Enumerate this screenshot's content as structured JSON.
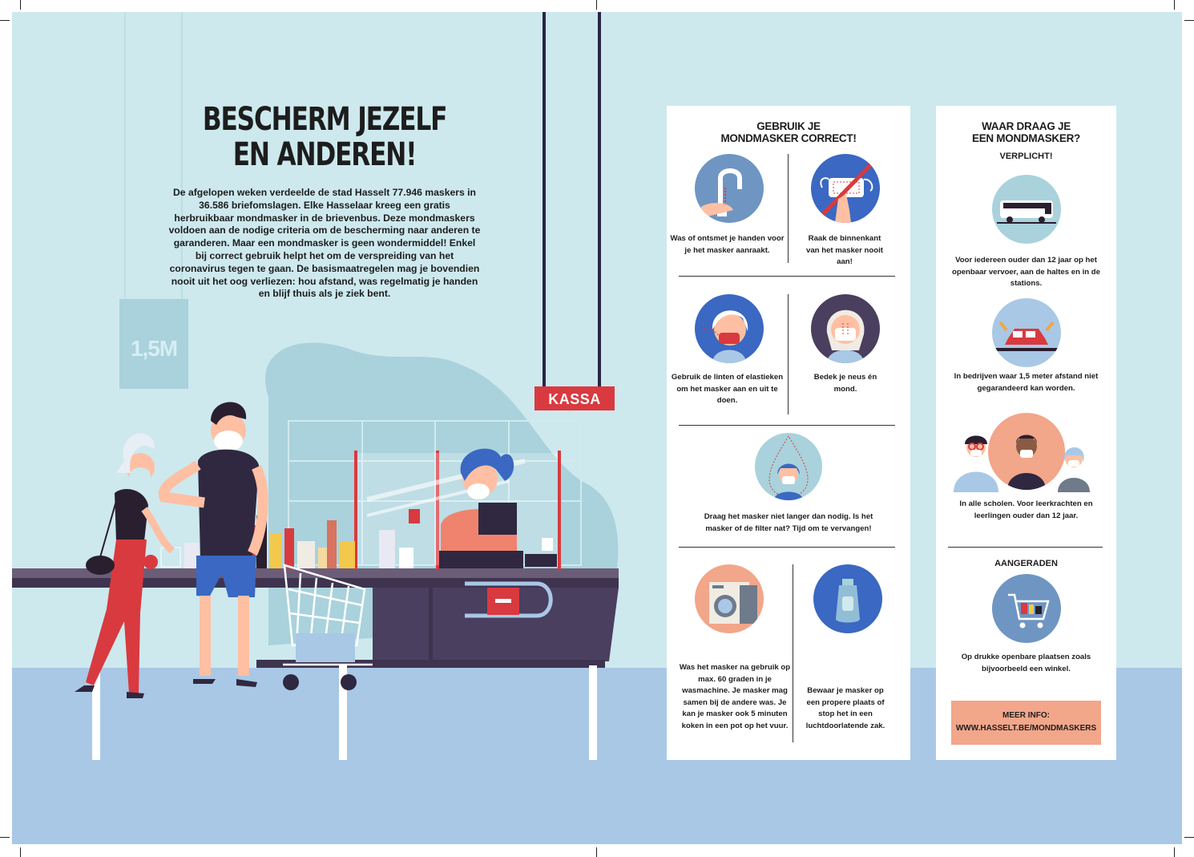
{
  "left": {
    "title_line1": "BESCHERM JEZELF",
    "title_line2": "EN ANDEREN!",
    "intro": "De afgelopen weken verdeelde de stad Hasselt 77.946 maskers in 36.586 briefomslagen. Elke Hasselaar kreeg een gratis herbruikbaar mondmasker in de brievenbus. Deze mondmaskers voldoen aan de nodige criteria om de bescherming naar anderen te garanderen. Maar een mondmasker is geen wondermiddel! Enkel bij correct gebruik helpt het om de verspreiding van het coronavirus tegen te gaan. De basismaatregelen mag je bovendien nooit uit het oog verliezen: hou afstand, was regelmatig je handen en blijf thuis als je ziek bent.",
    "distance_sign": "1,5M",
    "kassa_sign": "KASSA"
  },
  "correct_use": {
    "title_line1": "GEBRUIK JE",
    "title_line2": "MONDMASKER CORRECT!",
    "tips": [
      {
        "icon": "faucet-icon",
        "text": "Was of ontsmet je handen voor je het masker aanraakt."
      },
      {
        "icon": "no-touch-mask-icon",
        "text": "Raak de binnenkant van het masker nooit aan!"
      },
      {
        "icon": "mask-straps-icon",
        "text": "Gebruik de linten of elastieken om het masker aan en uit te doen."
      },
      {
        "icon": "cover-nose-mouth-icon",
        "text": "Bedek je neus én mond."
      },
      {
        "icon": "droplet-mask-icon",
        "text": "Draag het masker niet langer dan nodig. Is het masker of de filter nat? Tijd om te vervangen!"
      },
      {
        "icon": "washing-machine-icon",
        "text": "Was het masker na gebruik op max. 60 graden in je wasmachine. Je masker mag samen bij de andere was. Je kan je masker ook 5 minuten koken in een pot op het vuur."
      },
      {
        "icon": "storage-bag-icon",
        "text": "Bewaar je masker op een propere plaats of stop het in een luchtdoorlatende zak."
      }
    ]
  },
  "where": {
    "title_line1": "WAAR DRAAG JE",
    "title_line2": "EEN MONDMASKER?",
    "mandatory_label": "VERPLICHT!",
    "mandatory": [
      {
        "icon": "bus-icon",
        "text": "Voor iedereen ouder dan 12 jaar op het openbaar vervoer, aan de haltes en in de stations."
      },
      {
        "icon": "factory-car-icon",
        "text": "In bedrijven waar 1,5 meter afstand niet gegarandeerd kan worden."
      },
      {
        "icon": "school-people-icon",
        "text": "In alle scholen. Voor leerkrachten en leerlingen ouder dan 12 jaar."
      }
    ],
    "advised_label": "AANGERADEN",
    "advised": [
      {
        "icon": "shopping-cart-icon",
        "text": "Op drukke openbare plaatsen zoals bijvoorbeeld een winkel."
      }
    ],
    "more_info_label": "MEER INFO:",
    "more_info_url": "WWW.HASSELT.BE/MONDMASKERS"
  },
  "colors": {
    "background": "#cde9ee",
    "floor": "#a9c8e6",
    "kassa": "#d83a3f",
    "more_info_box": "#f2a68a",
    "counter": "#4a3f5e"
  }
}
